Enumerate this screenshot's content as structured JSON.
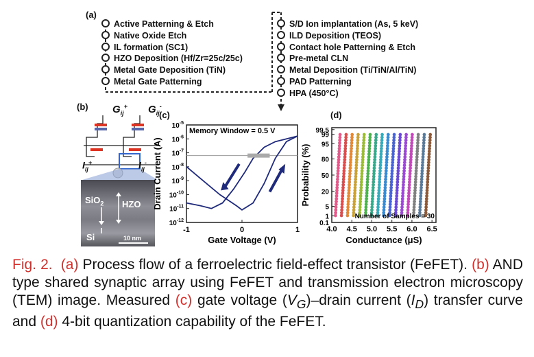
{
  "panel_a": {
    "label": "(a)",
    "left_steps": [
      "Active Patterning & Etch",
      "Native Oxide Etch",
      "IL formation (SC1)",
      "HZO Deposition (Hf/Zr=25c/25c)",
      "Metal Gate Deposition (TiN)",
      "Metal Gate Patterning"
    ],
    "right_steps": [
      "S/D Ion implantation (As, 5 keV)",
      "ILD Deposition (TEOS)",
      "Contact hole Patterning & Etch",
      "Pre-metal CLN",
      "Metal Deposition (Ti/TiN/Al/TiN)",
      "PAD Patterning",
      "HPA (450°C)"
    ]
  },
  "panel_b": {
    "label": "(b)",
    "g_plus": "G",
    "g_sub": "ij",
    "g_plus_sup": "+",
    "g_minus_sup": "-",
    "i_label": "I",
    "i_sub": "ij",
    "i_plus_sup": "+",
    "i_minus_sup": "-",
    "sio2": "SiO",
    "sio2_sub": "2",
    "hzo": "HZO",
    "si": "Si",
    "scale": "10 nm"
  },
  "chart_data": [
    {
      "type": "line",
      "panel": "(c)",
      "xlabel": "Gate Voltage (V)",
      "ylabel": "Drain Current (A)",
      "xlim": [
        -1,
        1
      ],
      "ylim_log10": [
        -12,
        -5
      ],
      "x_ticks": [
        "-1",
        "0",
        "1"
      ],
      "y_ticks": [
        "10-5",
        "10-6",
        "10-7",
        "10-8",
        "10-9",
        "10-10",
        "10-11",
        "10-12"
      ],
      "annotation": "Memory Window = 0.5 V",
      "reference_line_log10": -7.2,
      "series": [
        {
          "sweep": "backward",
          "x": [
            1.0,
            0.6,
            0.4,
            0.2,
            0.05,
            -0.15,
            -0.35,
            -0.55,
            -0.75,
            -1.0
          ],
          "log10_y": [
            -5.8,
            -6.2,
            -6.6,
            -7.4,
            -8.4,
            -9.6,
            -10.6,
            -11.0,
            -10.8,
            -10.6
          ]
        },
        {
          "sweep": "forward",
          "x": [
            -1.0,
            -0.7,
            -0.4,
            -0.1,
            0.0,
            0.2,
            0.4,
            0.6,
            0.8,
            1.0
          ],
          "log10_y": [
            -8.0,
            -9.0,
            -10.0,
            -10.8,
            -11.1,
            -10.6,
            -9.2,
            -7.4,
            -6.2,
            -5.8
          ]
        }
      ]
    },
    {
      "type": "scatter",
      "panel": "(d)",
      "xlabel": "Conductance (μS)",
      "ylabel": "Probability (%)",
      "xlim": [
        4.0,
        6.6
      ],
      "x_ticks": [
        "4.0",
        "4.5",
        "5.0",
        "5.5",
        "6.0",
        "6.5"
      ],
      "y_ticks": [
        "99.5",
        "99",
        "95",
        "80",
        "50",
        "20",
        "5",
        "1",
        "0.1"
      ],
      "annotation": "Number of Samples = 30",
      "state_means": [
        4.15,
        4.3,
        4.45,
        4.6,
        4.75,
        4.9,
        5.05,
        5.2,
        5.35,
        5.5,
        5.65,
        5.8,
        5.95,
        6.1,
        6.25,
        6.4
      ],
      "colors": [
        "#e05a8a",
        "#d94e4e",
        "#e08a3a",
        "#c9a23a",
        "#9bbb3a",
        "#4fb04f",
        "#3aa88a",
        "#3aaab8",
        "#3a8ad0",
        "#4a64d0",
        "#6a4ad0",
        "#9a4ad0",
        "#c04ab8",
        "#808080",
        "#5a7a9a",
        "#8a5a3a"
      ]
    }
  ],
  "caption": {
    "fig": "Fig. 2.",
    "a": "(a)",
    "a_text": " Process flow of a ferroelectric field-effect transistor (FeFET).",
    "b": "(b)",
    "b_text": " AND type shared synaptic array using FeFET and transmission electron microscopy (TEM) image. Measured ",
    "c": "(c)",
    "c_text1": " gate voltage (",
    "vg_v": "V",
    "vg_sub": "G",
    "c_text2": ")–drain current (",
    "id_i": "I",
    "id_sub": "D",
    "c_text3": ") transfer curve and ",
    "d": "(d)",
    "d_text": " 4-bit quantization capability of the FeFET."
  }
}
